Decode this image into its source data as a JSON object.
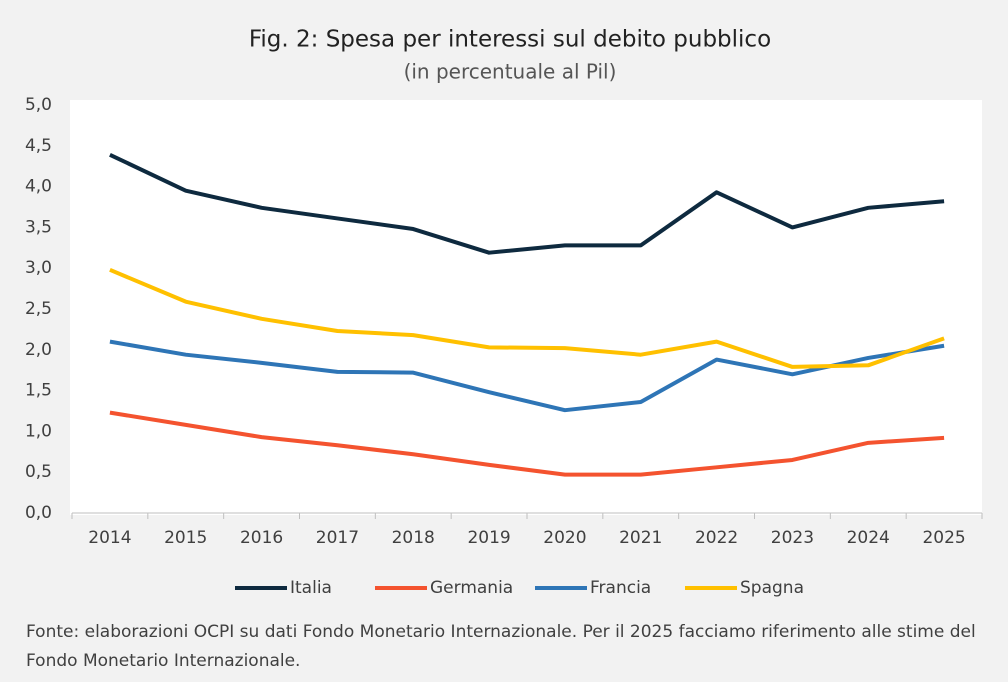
{
  "chart_data": {
    "type": "line",
    "title": "Fig. 2: Spesa per interessi sul debito pubblico",
    "subtitle": "(in percentuale al Pil)",
    "categories": [
      "2014",
      "2015",
      "2016",
      "2017",
      "2018",
      "2019",
      "2020",
      "2021",
      "2022",
      "2023",
      "2024",
      "2025"
    ],
    "series": [
      {
        "name": "Italia",
        "color": "#0e2a3f",
        "values": [
          4.39,
          3.95,
          3.74,
          3.61,
          3.48,
          3.19,
          3.28,
          3.28,
          3.93,
          3.5,
          3.74,
          3.82
        ]
      },
      {
        "name": "Germania",
        "color": "#f4532f",
        "values": [
          1.23,
          1.08,
          0.93,
          0.83,
          0.72,
          0.59,
          0.47,
          0.47,
          0.56,
          0.65,
          0.86,
          0.92
        ]
      },
      {
        "name": "Francia",
        "color": "#2e75b6",
        "values": [
          2.1,
          1.94,
          1.84,
          1.73,
          1.72,
          1.48,
          1.26,
          1.36,
          1.88,
          1.7,
          1.9,
          2.05
        ]
      },
      {
        "name": "Spagna",
        "color": "#ffc000",
        "values": [
          2.98,
          2.59,
          2.38,
          2.23,
          2.18,
          2.03,
          2.02,
          1.94,
          2.1,
          1.79,
          1.81,
          2.14
        ]
      }
    ],
    "ylim": [
      0,
      5
    ],
    "yticks": [
      {
        "value": 0,
        "label": "0,0"
      },
      {
        "value": 0.5,
        "label": "0,5"
      },
      {
        "value": 1,
        "label": "1,0"
      },
      {
        "value": 1.5,
        "label": "1,5"
      },
      {
        "value": 2,
        "label": "2,0"
      },
      {
        "value": 2.5,
        "label": "2,5"
      },
      {
        "value": 3,
        "label": "3,0"
      },
      {
        "value": 3.5,
        "label": "3,5"
      },
      {
        "value": 4,
        "label": "4,0"
      },
      {
        "value": 4.5,
        "label": "4,5"
      },
      {
        "value": 5,
        "label": "5,0"
      }
    ],
    "legend": "bottom",
    "note": "Fonte: elaborazioni OCPI su dati Fondo Monetario Internazionale. Per il 2025 facciamo riferimento alle stime del Fondo Monetario Internazionale."
  }
}
